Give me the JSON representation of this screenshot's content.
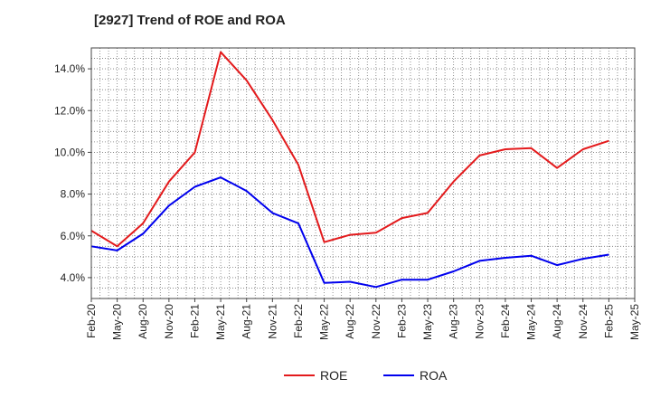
{
  "chart_data": {
    "type": "line",
    "title": "[2927]  Trend of ROE and ROA",
    "xlabel": "",
    "ylabel": "",
    "x": [
      "Feb-20",
      "May-20",
      "Aug-20",
      "Nov-20",
      "Feb-21",
      "May-21",
      "Aug-21",
      "Nov-21",
      "Feb-22",
      "May-22",
      "Aug-22",
      "Nov-22",
      "Feb-23",
      "May-23",
      "Aug-23",
      "Nov-23",
      "Feb-24",
      "May-24",
      "Aug-24",
      "Nov-24",
      "Feb-25",
      "May-25"
    ],
    "ylim": [
      3.0,
      15.0
    ],
    "yticks": [
      4.0,
      6.0,
      8.0,
      10.0,
      12.0,
      14.0
    ],
    "ytick_labels": [
      "4.0%",
      "6.0%",
      "8.0%",
      "10.0%",
      "12.0%",
      "14.0%"
    ],
    "grid": true,
    "legend_position": "bottom",
    "series": [
      {
        "name": "ROE",
        "color": "#e31a1c",
        "values": [
          6.25,
          5.5,
          6.6,
          8.6,
          10.0,
          14.8,
          13.45,
          11.55,
          9.4,
          5.7,
          6.05,
          6.15,
          6.85,
          7.1,
          8.6,
          9.85,
          10.15,
          10.2,
          9.25,
          10.15,
          10.55,
          null
        ]
      },
      {
        "name": "ROA",
        "color": "#0000ee",
        "values": [
          5.5,
          5.3,
          6.1,
          7.45,
          8.35,
          8.8,
          8.15,
          7.1,
          6.6,
          3.75,
          3.8,
          3.55,
          3.9,
          3.9,
          4.3,
          4.8,
          4.95,
          5.05,
          4.6,
          4.9,
          5.1,
          null
        ]
      }
    ]
  }
}
